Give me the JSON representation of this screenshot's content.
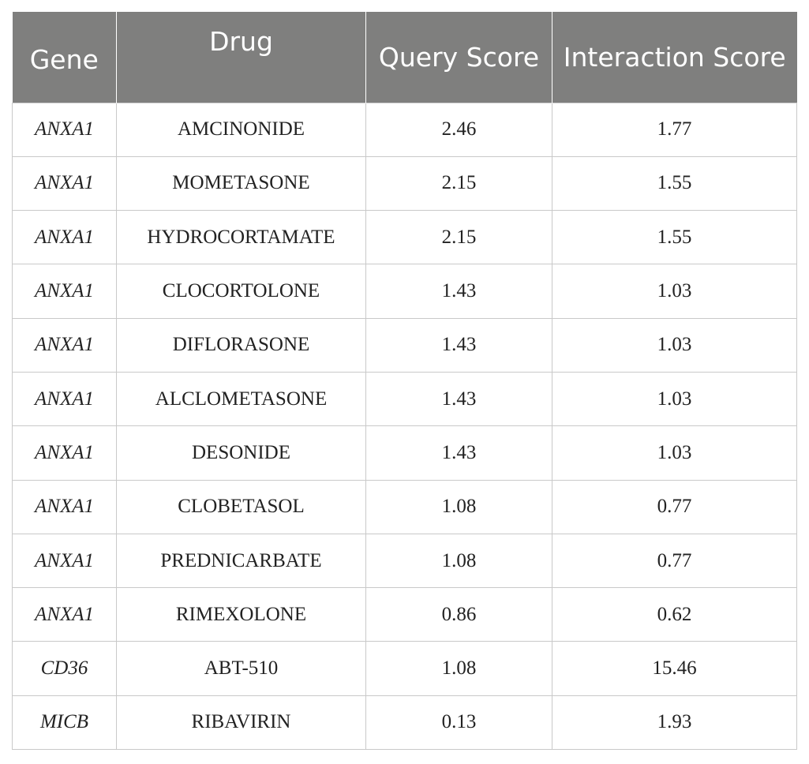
{
  "header": {
    "gene": "Gene",
    "drug": "Drug",
    "query_score": "Query Score",
    "interaction_score": "Interaction Score"
  },
  "rows": [
    {
      "gene": "ANXA1",
      "drug": "AMCINONIDE",
      "query_score": "2.46",
      "interaction_score": "1.77"
    },
    {
      "gene": "ANXA1",
      "drug": "MOMETASONE",
      "query_score": "2.15",
      "interaction_score": "1.55"
    },
    {
      "gene": "ANXA1",
      "drug": "HYDROCORTAMATE",
      "query_score": "2.15",
      "interaction_score": "1.55"
    },
    {
      "gene": "ANXA1",
      "drug": "CLOCORTOLONE",
      "query_score": "1.43",
      "interaction_score": "1.03"
    },
    {
      "gene": "ANXA1",
      "drug": "DIFLORASONE",
      "query_score": "1.43",
      "interaction_score": "1.03"
    },
    {
      "gene": "ANXA1",
      "drug": "ALCLOMETASONE",
      "query_score": "1.43",
      "interaction_score": "1.03"
    },
    {
      "gene": "ANXA1",
      "drug": "DESONIDE",
      "query_score": "1.43",
      "interaction_score": "1.03"
    },
    {
      "gene": "ANXA1",
      "drug": "CLOBETASOL",
      "query_score": "1.08",
      "interaction_score": "0.77"
    },
    {
      "gene": "ANXA1",
      "drug": "PREDNICARBATE",
      "query_score": "1.08",
      "interaction_score": "0.77"
    },
    {
      "gene": "ANXA1",
      "drug": "RIMEXOLONE",
      "query_score": "0.86",
      "interaction_score": "0.62"
    },
    {
      "gene": "CD36",
      "drug": "ABT-510",
      "query_score": "1.08",
      "interaction_score": "15.46"
    },
    {
      "gene": "MICB",
      "drug": "RIBAVIRIN",
      "query_score": "0.13",
      "interaction_score": "1.93"
    }
  ]
}
